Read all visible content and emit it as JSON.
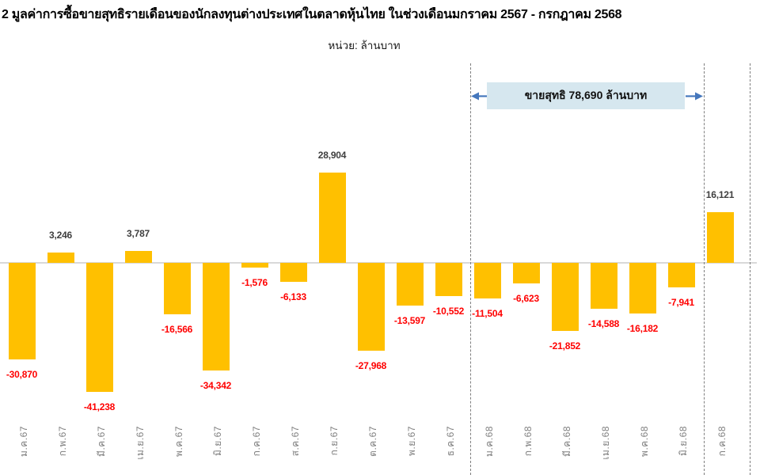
{
  "page": {
    "title": "2 มูลค่าการซื้อขายสุทธิรายเดือนของนักลงทุนต่างประเทศในตลาดหุ้นไทย ในช่วงเดือนมกราคม 2567 - กรกฎาคม 2568",
    "unit_label": "หน่วย: ล้านบาท"
  },
  "annotation": {
    "label": "ขายสุทธิ 78,690 ล้านบาท",
    "net_sell_value": -78690,
    "spans_categories": [
      "ม.ค.68",
      "มิ.ย.68"
    ],
    "box_bg": "#d6e7ef",
    "arrow_color": "#4577bc"
  },
  "chart_data": {
    "type": "bar",
    "title": "2 มูลค่าการซื้อขายสุทธิรายเดือนของนักลงทุนต่างประเทศในตลาดหุ้นไทย ในช่วงเดือนมกราคม 2567 - กรกฎาคม 2568",
    "unit": "ล้านบาท",
    "xlabel": "",
    "ylabel": "",
    "ylim": [
      -45000,
      32000
    ],
    "grid": false,
    "legend": "none",
    "categories": [
      "ม.ค.67",
      "ก.พ.67",
      "มี.ค.67",
      "เม.ย.67",
      "พ.ค.67",
      "มิ.ย.67",
      "ก.ค.67",
      "ส.ค.67",
      "ก.ย.67",
      "ต.ค.67",
      "พ.ย.67",
      "ธ.ค.67",
      "ม.ค.68",
      "ก.พ.68",
      "มี.ค.68",
      "เม.ย.68",
      "พ.ค.68",
      "มิ.ย.68",
      "ก.ค.68"
    ],
    "values": [
      -30870,
      3246,
      -41238,
      3787,
      -16566,
      -34342,
      -1576,
      -6133,
      28904,
      -27968,
      -13597,
      -10552,
      -11504,
      -6623,
      -21852,
      -14588,
      -16182,
      -7941,
      16121
    ],
    "value_labels": [
      "-30,870",
      "3,246",
      "-41,238",
      "3,787",
      "-16,566",
      "-34,342",
      "-1,576",
      "-6,133",
      "28,904",
      "-27,968",
      "-13,597",
      "-10,552",
      "-11,504",
      "-6,623",
      "-21,852",
      "-14,588",
      "-16,182",
      "-7,941",
      "16,121"
    ],
    "bar_color": "#ffc000",
    "positive_label_color": "#3f3f3f",
    "negative_label_color": "#ff0000",
    "axis_line_color": "#d9d9d9",
    "category_label_color": "#7f7f7f",
    "divider_line_color": "#7f7f7f"
  }
}
